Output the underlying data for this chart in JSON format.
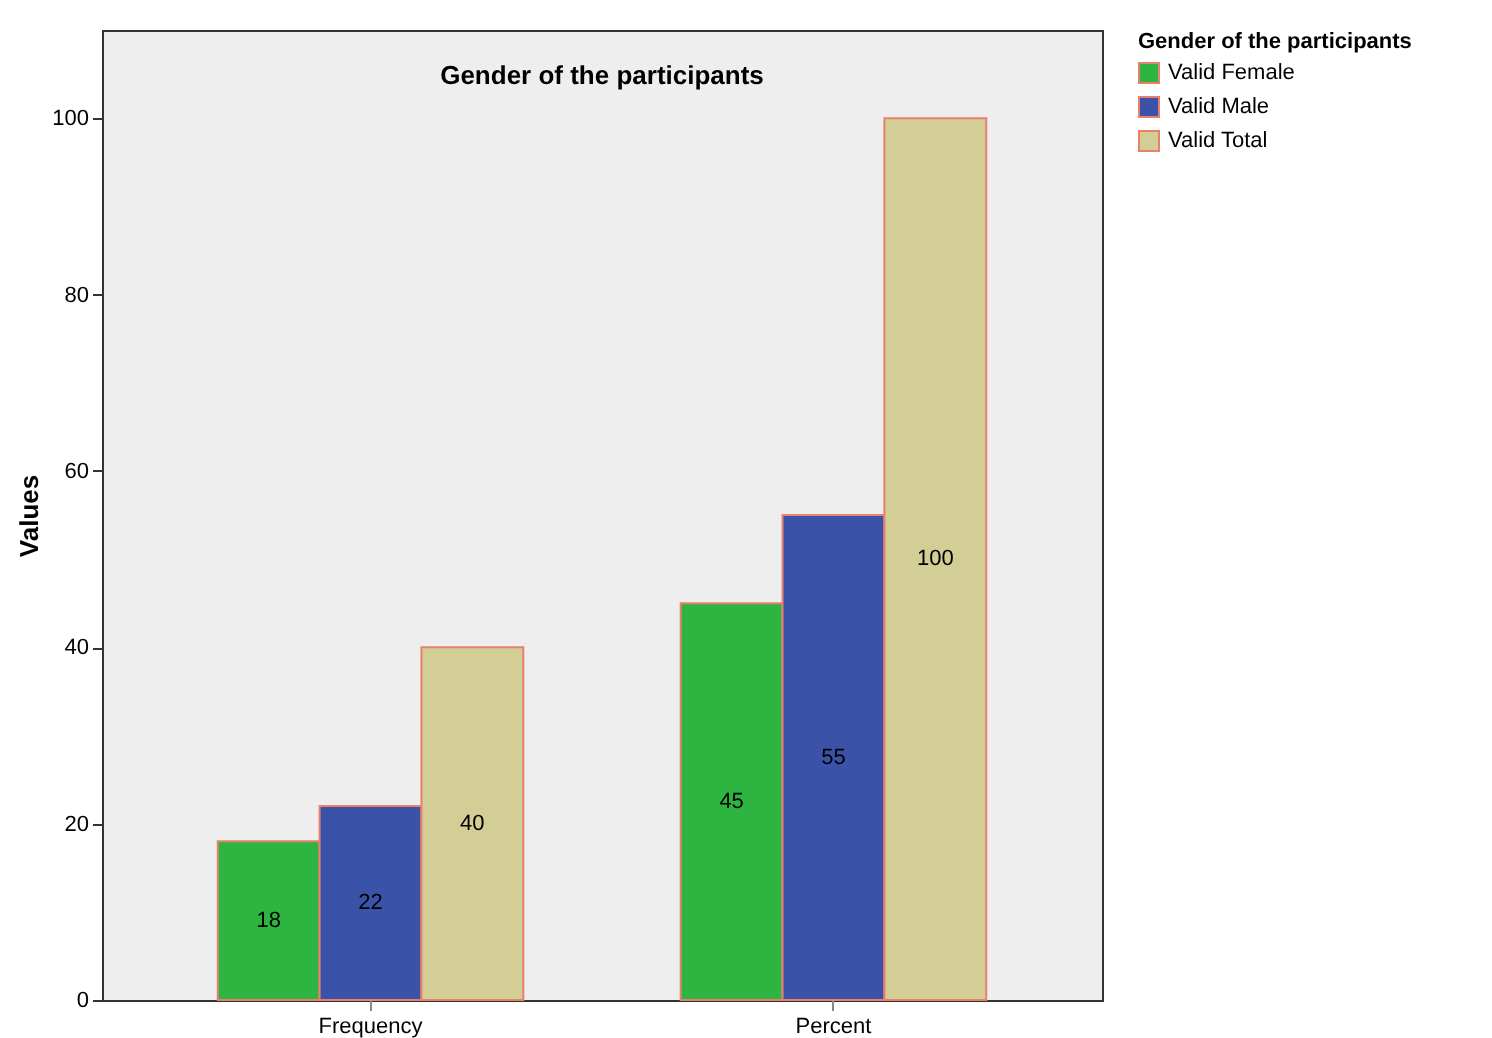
{
  "chart_data": {
    "type": "bar",
    "title": "Gender of the participants",
    "ylabel": "Values",
    "legend_title": "Gender of the participants",
    "categories": [
      "Frequency",
      "Percent"
    ],
    "series": [
      {
        "name": "Valid Female",
        "color": "#2db441",
        "values": [
          18,
          45
        ]
      },
      {
        "name": "Valid Male",
        "color": "#3a53a8",
        "values": [
          22,
          55
        ]
      },
      {
        "name": "Valid Total",
        "color": "#d3cd96",
        "values": [
          40,
          100
        ]
      }
    ],
    "ylim": [
      0,
      110
    ],
    "yticks": [
      0,
      20,
      40,
      60,
      80,
      100
    ],
    "grid": false,
    "legend": "top right",
    "data_labels": true
  }
}
